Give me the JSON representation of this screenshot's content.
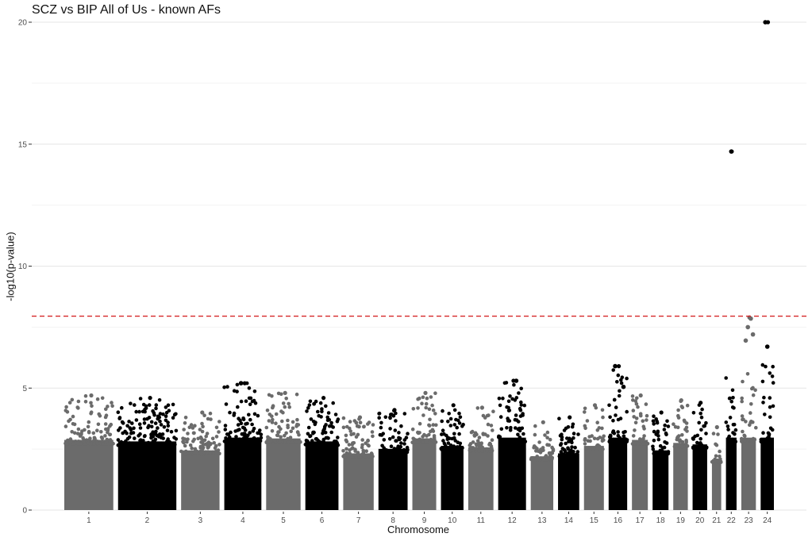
{
  "chart_data": {
    "type": "scatter",
    "title": "SCZ vs BIP All of Us - known AFs",
    "xlabel": "Chromosome",
    "ylabel": "-log10(p-value)",
    "ylim": [
      0,
      20
    ],
    "yticks": [
      0,
      5,
      10,
      15,
      20
    ],
    "grid": true,
    "legend": "none",
    "threshold": {
      "value": 7.95,
      "color": "#d62728",
      "style": "dashed"
    },
    "colors": {
      "odd": "#6b6b6b",
      "even": "#000000"
    },
    "chromosomes": [
      {
        "label": "1",
        "peak": 4.7
      },
      {
        "label": "2",
        "peak": 4.6
      },
      {
        "label": "3",
        "peak": 4.0
      },
      {
        "label": "4",
        "peak": 5.2
      },
      {
        "label": "5",
        "peak": 4.8
      },
      {
        "label": "6",
        "peak": 4.6
      },
      {
        "label": "7",
        "peak": 3.8
      },
      {
        "label": "8",
        "peak": 4.1
      },
      {
        "label": "9",
        "peak": 4.8
      },
      {
        "label": "10",
        "peak": 4.3
      },
      {
        "label": "11",
        "peak": 4.2
      },
      {
        "label": "12",
        "peak": 5.3
      },
      {
        "label": "13",
        "peak": 3.6
      },
      {
        "label": "14",
        "peak": 3.8
      },
      {
        "label": "15",
        "peak": 4.3
      },
      {
        "label": "16",
        "peak": 5.9
      },
      {
        "label": "17",
        "peak": 4.7
      },
      {
        "label": "18",
        "peak": 4.0
      },
      {
        "label": "19",
        "peak": 4.5
      },
      {
        "label": "20",
        "peak": 4.4
      },
      {
        "label": "21",
        "peak": 3.4
      },
      {
        "label": "22",
        "peak": 14.7
      },
      {
        "label": "23",
        "peak": 7.9
      },
      {
        "label": "24",
        "peak": 20.0
      }
    ],
    "highlighted_points": [
      {
        "chromosome": "22",
        "y": 14.7
      },
      {
        "chromosome": "24",
        "y": 20.0
      },
      {
        "chromosome": "23",
        "y": 7.85
      },
      {
        "chromosome": "23",
        "y": 7.5
      },
      {
        "chromosome": "23",
        "y": 7.2
      },
      {
        "chromosome": "23",
        "y": 6.95
      },
      {
        "chromosome": "24",
        "y": 6.7
      },
      {
        "chromosome": "16",
        "y": 5.9
      },
      {
        "chromosome": "12",
        "y": 5.3
      },
      {
        "chromosome": "4",
        "y": 5.2
      },
      {
        "chromosome": "16",
        "y": 5.05
      }
    ]
  }
}
